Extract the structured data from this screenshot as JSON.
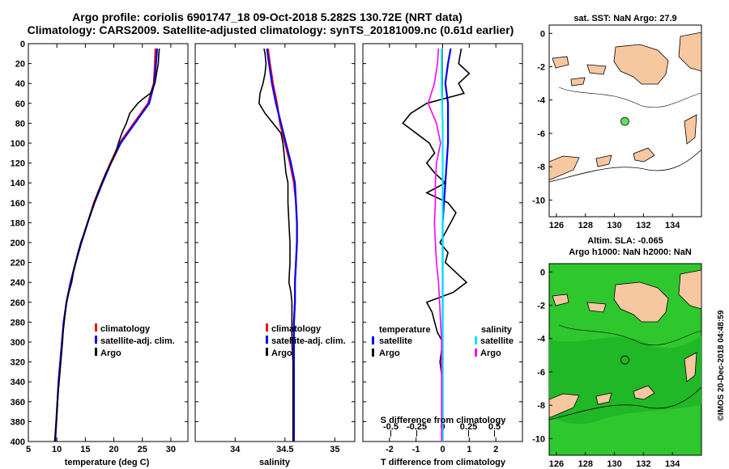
{
  "figure": {
    "title_line1": "Argo profile: coriolis 6901747_18 09-Oct-2018 5.282S 130.72E (NRT data)",
    "title_line2": "Climatology: CARS2009. Satellite-adjusted climatology: synTS_20181009.nc (0.61d earlier)",
    "side_label": "©IMOS 20-Dec-2018 04:48:59",
    "colors": {
      "climatology": "#ff0000",
      "satellite": "#0000ff",
      "argo": "#000000",
      "sat_salinity": "#00e5ff",
      "argo_salinity": "#ff00ff",
      "land": "#f7c7a0",
      "sla_sea": "#2ec82e",
      "buoy": "#5ee05e"
    }
  },
  "chart_data": [
    {
      "id": "temperature",
      "type": "line",
      "xlabel": "temperature (deg C)",
      "ylabel": "",
      "xlim": [
        5,
        33
      ],
      "ylim": [
        400,
        0
      ],
      "xticks": [
        "5",
        "10",
        "15",
        "20",
        "25",
        "30"
      ],
      "xtick_values": [
        5,
        10,
        15,
        20,
        25,
        30
      ],
      "yticks": [
        "0",
        "20",
        "40",
        "60",
        "80",
        "100",
        "120",
        "140",
        "160",
        "180",
        "200",
        "220",
        "240",
        "260",
        "280",
        "300",
        "320",
        "340",
        "360",
        "380",
        "400"
      ],
      "ytick_values": [
        0,
        20,
        40,
        60,
        80,
        100,
        120,
        140,
        160,
        180,
        200,
        220,
        240,
        260,
        280,
        300,
        320,
        340,
        360,
        380,
        400
      ],
      "legend": [
        "climatology",
        "satellite-adj. clim.",
        "Argo"
      ],
      "series": [
        {
          "name": "climatology",
          "color": "#ff0000",
          "depth": [
            5,
            20,
            40,
            60,
            80,
            100,
            120,
            140,
            160,
            180,
            200,
            220,
            240,
            260,
            280,
            300,
            320,
            340,
            360,
            380,
            400
          ],
          "values": [
            27.3,
            27.2,
            27.0,
            26.0,
            23.5,
            21.0,
            19.4,
            17.9,
            16.5,
            15.4,
            14.3,
            13.3,
            12.4,
            11.7,
            11.2,
            10.9,
            10.6,
            10.3,
            10.1,
            9.9,
            9.7
          ]
        },
        {
          "name": "satellite-adj. clim.",
          "color": "#0000ff",
          "depth": [
            5,
            20,
            40,
            60,
            80,
            100,
            120,
            140,
            160,
            180,
            200,
            220,
            240,
            260,
            280,
            300,
            320,
            340,
            360,
            380,
            400
          ],
          "values": [
            27.6,
            27.4,
            27.1,
            26.2,
            23.7,
            21.2,
            19.5,
            18.0,
            16.6,
            15.4,
            14.3,
            13.3,
            12.4,
            11.7,
            11.2,
            10.9,
            10.6,
            10.3,
            10.1,
            9.9,
            9.7
          ]
        },
        {
          "name": "Argo",
          "color": "#000000",
          "depth": [
            5,
            10,
            20,
            30,
            40,
            50,
            55,
            60,
            70,
            80,
            90,
            100,
            110,
            120,
            130,
            140,
            150,
            160,
            170,
            180,
            190,
            200,
            210,
            220,
            230,
            240,
            250,
            260,
            270,
            280,
            290,
            300,
            320,
            340,
            360,
            380,
            400
          ],
          "values": [
            28.0,
            27.9,
            27.8,
            27.5,
            27.2,
            26.4,
            25.2,
            24.2,
            22.8,
            22.2,
            21.4,
            20.8,
            20.3,
            19.5,
            18.6,
            17.9,
            17.2,
            16.6,
            16.0,
            15.4,
            14.8,
            14.2,
            13.7,
            13.3,
            12.9,
            12.6,
            12.1,
            11.7,
            11.5,
            11.3,
            11.1,
            11.0,
            10.7,
            10.4,
            10.1,
            9.9,
            9.6
          ]
        }
      ]
    },
    {
      "id": "salinity",
      "type": "line",
      "xlabel": "salinity",
      "xlim": [
        33.6,
        35.2
      ],
      "ylim": [
        400,
        0
      ],
      "xticks": [
        "34",
        "34.5",
        "35"
      ],
      "xtick_values": [
        34,
        34.5,
        35
      ],
      "legend": [
        "climatology",
        "satellite-adj. clim.",
        "Argo"
      ],
      "series": [
        {
          "name": "climatology",
          "color": "#ff0000",
          "depth": [
            5,
            20,
            40,
            60,
            80,
            100,
            120,
            140,
            160,
            180,
            200,
            220,
            240,
            260,
            280,
            300,
            320,
            340,
            360,
            380,
            400
          ],
          "values": [
            34.33,
            34.35,
            34.38,
            34.42,
            34.45,
            34.5,
            34.55,
            34.59,
            34.61,
            34.62,
            34.62,
            34.61,
            34.6,
            34.6,
            34.59,
            34.59,
            34.59,
            34.59,
            34.59,
            34.59,
            34.59
          ]
        },
        {
          "name": "satellite-adj. clim.",
          "color": "#0000ff",
          "depth": [
            5,
            20,
            40,
            60,
            80,
            100,
            120,
            140,
            160,
            180,
            200,
            220,
            240,
            260,
            280,
            300,
            320,
            340,
            360,
            380,
            400
          ],
          "values": [
            34.32,
            34.34,
            34.37,
            34.41,
            34.46,
            34.51,
            34.56,
            34.6,
            34.61,
            34.62,
            34.62,
            34.61,
            34.6,
            34.6,
            34.59,
            34.59,
            34.59,
            34.59,
            34.59,
            34.59,
            34.59
          ]
        },
        {
          "name": "Argo",
          "color": "#000000",
          "depth": [
            5,
            10,
            20,
            30,
            40,
            50,
            60,
            70,
            80,
            90,
            100,
            110,
            120,
            130,
            140,
            160,
            180,
            200,
            220,
            240,
            250,
            260,
            280,
            300,
            320,
            340,
            360,
            380,
            400
          ],
          "values": [
            34.29,
            34.3,
            34.31,
            34.3,
            34.28,
            34.25,
            34.24,
            34.3,
            34.38,
            34.46,
            34.48,
            34.49,
            34.5,
            34.51,
            34.53,
            34.53,
            34.54,
            34.55,
            34.55,
            34.54,
            34.56,
            34.57,
            34.57,
            34.57,
            34.58,
            34.58,
            34.58,
            34.58,
            34.58
          ]
        }
      ]
    },
    {
      "id": "difference",
      "type": "line",
      "xlabel": "T difference from climatology",
      "top_axis_label": "S difference from climatology",
      "xlim": [
        -3,
        3
      ],
      "ylim": [
        400,
        0
      ],
      "xticks": [
        "-2",
        "-1",
        "0",
        "1",
        "2"
      ],
      "xtick_values": [
        -2,
        -1,
        0,
        1,
        2
      ],
      "sticks": [
        "-0.5",
        "-0.25",
        "0",
        "0.25",
        "0.5"
      ],
      "stick_values": [
        -0.5,
        -0.25,
        0,
        0.25,
        0.5
      ],
      "legend_temperature": {
        "heading": "temperature",
        "items": [
          "satellite",
          "Argo"
        ]
      },
      "legend_salinity": {
        "heading": "salinity",
        "items": [
          "satellite",
          "Argo"
        ]
      },
      "series": [
        {
          "name": "T satellite",
          "color": "#0000ff",
          "depth": [
            5,
            20,
            40,
            60,
            80,
            100,
            140,
            180,
            220,
            260,
            300,
            340,
            400
          ],
          "values": [
            0.3,
            0.2,
            0.1,
            0.2,
            0.2,
            0.2,
            0.1,
            0.0,
            0.0,
            0.0,
            0.0,
            0.0,
            0.0
          ]
        },
        {
          "name": "T Argo",
          "color": "#000000",
          "depth": [
            5,
            20,
            30,
            40,
            50,
            60,
            70,
            80,
            90,
            100,
            110,
            120,
            130,
            140,
            150,
            160,
            170,
            180,
            190,
            200,
            210,
            220,
            230,
            240,
            250,
            260,
            270,
            280,
            290,
            300,
            320,
            340,
            360,
            380,
            400
          ],
          "values": [
            0.7,
            0.6,
            1.0,
            0.6,
            0.8,
            -0.6,
            -1.2,
            -1.5,
            -1.0,
            -0.5,
            -0.3,
            -0.6,
            -0.3,
            0.1,
            -0.6,
            0.2,
            0.5,
            0.3,
            0.1,
            -0.1,
            0.2,
            0.1,
            0.5,
            0.9,
            0.4,
            -0.6,
            -0.4,
            -0.3,
            -0.2,
            0.0,
            -0.1,
            0.0,
            0.0,
            0.0,
            0.0
          ]
        },
        {
          "name": "S satellite",
          "color": "#00e5ff",
          "depth": [
            5,
            40,
            80,
            120,
            160,
            200,
            240,
            280,
            320,
            360,
            400
          ],
          "values": [
            -0.01,
            -0.01,
            0.0,
            0.0,
            0.0,
            0.0,
            0.0,
            0.0,
            0.0,
            0.0,
            0.0
          ]
        },
        {
          "name": "S Argo",
          "color": "#ff00ff",
          "depth": [
            5,
            20,
            40,
            60,
            80,
            100,
            120,
            140,
            160,
            180,
            200,
            220,
            240,
            260,
            280,
            300,
            320,
            340,
            360,
            380,
            400
          ],
          "values": [
            -0.04,
            -0.05,
            -0.08,
            -0.14,
            -0.06,
            -0.02,
            -0.06,
            -0.07,
            -0.07,
            -0.08,
            -0.07,
            -0.06,
            -0.04,
            -0.03,
            -0.02,
            -0.01,
            -0.01,
            -0.01,
            -0.01,
            -0.01,
            -0.01
          ]
        }
      ]
    },
    {
      "id": "sst_map",
      "type": "map",
      "title": "sat. SST: NaN Argo: 27.9",
      "xticks": [
        "126",
        "128",
        "130",
        "132",
        "134"
      ],
      "xtick_values": [
        126,
        128,
        130,
        132,
        134
      ],
      "yticks": [
        "0",
        "-2",
        "-4",
        "-6",
        "-8",
        "-10"
      ],
      "ytick_values": [
        0,
        -2,
        -4,
        -6,
        -8,
        -10
      ],
      "xlim": [
        125.5,
        136
      ],
      "ylim": [
        -11,
        0.5
      ],
      "marker": {
        "lon": 130.72,
        "lat": -5.28
      }
    },
    {
      "id": "sla_map",
      "type": "map",
      "title_line1": "Altim. SLA: -0.065",
      "title_line2": "Argo h1000: NaN h2000: NaN",
      "xticks": [
        "126",
        "128",
        "130",
        "132",
        "134"
      ],
      "xtick_values": [
        126,
        128,
        130,
        132,
        134
      ],
      "yticks": [
        "0",
        "-2",
        "-4",
        "-6",
        "-8",
        "-10"
      ],
      "ytick_values": [
        0,
        -2,
        -4,
        -6,
        -8,
        -10
      ],
      "xlim": [
        125.5,
        136
      ],
      "ylim": [
        -11,
        0.5
      ],
      "marker": {
        "lon": 130.72,
        "lat": -5.28
      }
    }
  ]
}
